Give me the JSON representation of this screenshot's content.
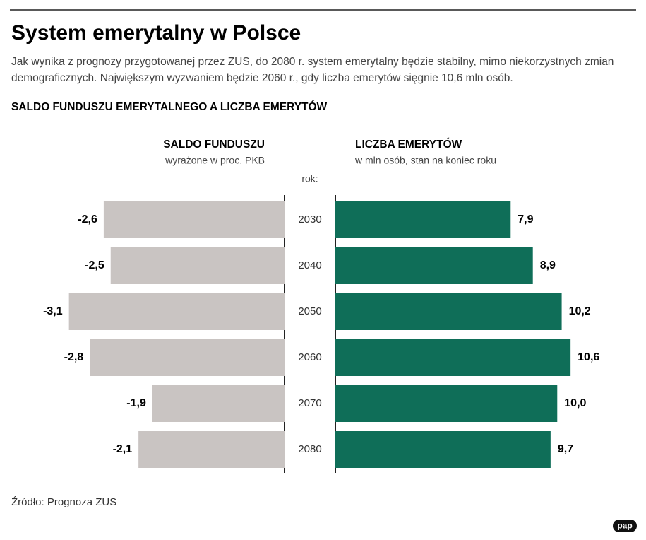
{
  "title": "System emerytalny w Polsce",
  "subtitle": "Jak wynika z prognozy przygotowanej przez ZUS, do 2080 r. system emerytalny będzie stabilny, mimo niekorzystnych zmian demograficznych. Największym wyzwaniem będzie 2060 r., gdy liczba emerytów sięgnie 10,6 mln osób.",
  "heading": "SALDO FUNDUSZU EMERYTALNEGO A LICZBA EMERYTÓW",
  "source": "Źródło: Prognoza ZUS",
  "logo": "pap",
  "chart_data": [
    {
      "type": "bar",
      "title": "SALDO FUNDUSZU",
      "subtitle": "wyrażone w proc. PKB",
      "categories_label": "rok:",
      "categories": [
        "2030",
        "2040",
        "2050",
        "2060",
        "2070",
        "2080"
      ],
      "values": [
        -2.6,
        -2.5,
        -3.1,
        -2.8,
        -1.9,
        -2.1
      ],
      "value_labels": [
        "-2,6",
        "-2,5",
        "-3,1",
        "-2,8",
        "-1,9",
        "-2,1"
      ],
      "color": "#c9c4c2",
      "xlim": [
        -4,
        0
      ]
    },
    {
      "type": "bar",
      "title": "LICZBA EMERYTÓW",
      "subtitle": "w mln osób, stan na koniec roku",
      "values": [
        7.9,
        8.9,
        10.2,
        10.6,
        10.0,
        9.7
      ],
      "value_labels": [
        "7,9",
        "8,9",
        "10,2",
        "10,6",
        "10,0",
        "9,7"
      ],
      "color": "#0f6e58",
      "xlim": [
        0,
        14
      ]
    }
  ]
}
